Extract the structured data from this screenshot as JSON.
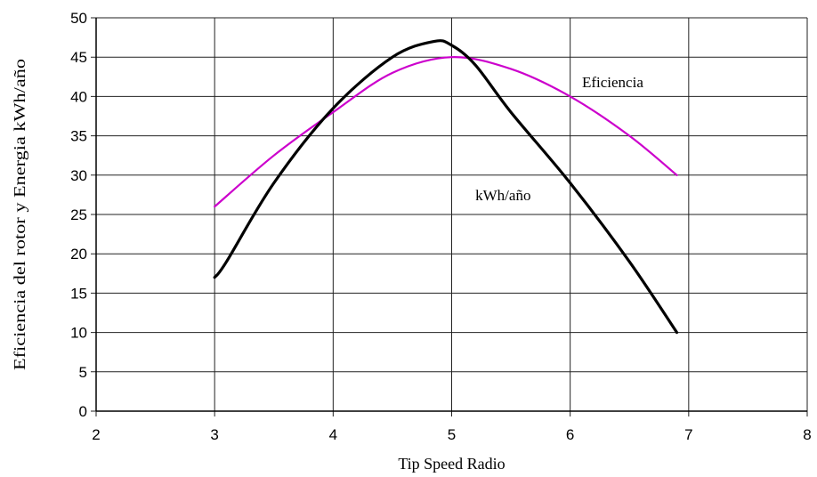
{
  "chart_data": {
    "type": "line",
    "title": "",
    "xlabel": "Tip Speed Radio",
    "ylabel": "Eficiencia del rotor y Energia kWh/año",
    "xlim": [
      2,
      8
    ],
    "ylim": [
      0,
      50
    ],
    "xticks": [
      "2",
      "3",
      "4",
      "5",
      "6",
      "7",
      "8"
    ],
    "yticks": [
      "0",
      "5",
      "10",
      "15",
      "20",
      "25",
      "30",
      "35",
      "40",
      "45",
      "50"
    ],
    "grid": true,
    "series": [
      {
        "name": "Eficiencia",
        "color": "#cc00cc",
        "x": [
          3.0,
          3.5,
          4.0,
          4.5,
          5.0,
          5.5,
          6.0,
          6.5,
          6.9
        ],
        "y": [
          26,
          32.5,
          38,
          43,
          45,
          43.5,
          40,
          35,
          30
        ]
      },
      {
        "name": "kWh/año",
        "color": "#000000",
        "x": [
          3.0,
          3.1,
          3.5,
          4.0,
          4.5,
          4.85,
          5.0,
          5.2,
          5.5,
          6.0,
          6.5,
          6.9
        ],
        "y": [
          17,
          19,
          29,
          38.5,
          45,
          47,
          46.5,
          44,
          38,
          29,
          19,
          10
        ]
      }
    ]
  }
}
